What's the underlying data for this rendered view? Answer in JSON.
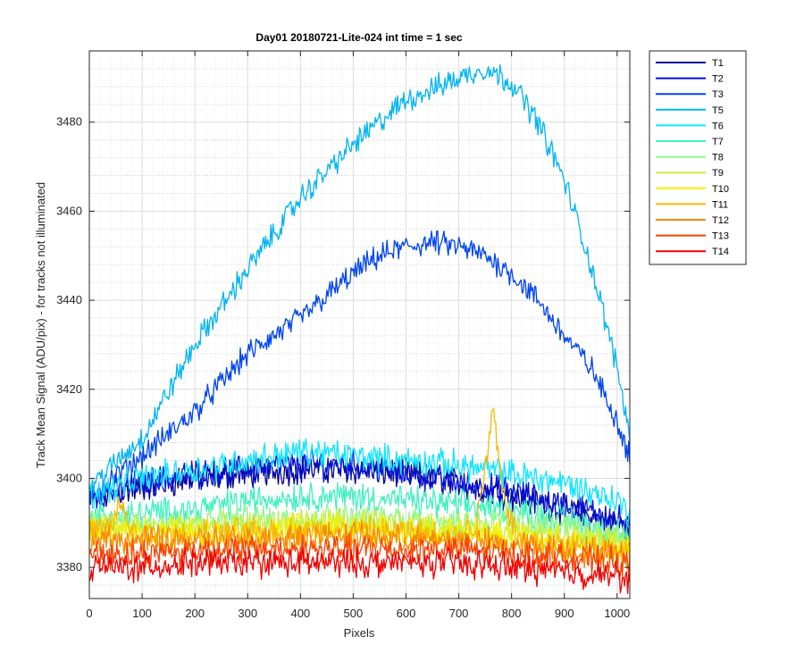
{
  "chart_data": {
    "type": "line",
    "title": "Day01 20180721-Lite-024 int time = 1 sec",
    "xlabel": "Pixels",
    "ylabel": "Track Mean Signal (ADU/pix) - for tracks not illuminated",
    "xlim": [
      0,
      1024
    ],
    "ylim": [
      3373,
      3496
    ],
    "xticks": [
      0,
      100,
      200,
      300,
      400,
      500,
      600,
      700,
      800,
      900,
      1000
    ],
    "xtick_labels": [
      "0",
      "100",
      "200",
      "300",
      "400",
      "500",
      "600",
      "700",
      "800",
      "900",
      "1000"
    ],
    "yticks": [
      3380,
      3400,
      3420,
      3440,
      3460,
      3480
    ],
    "ytick_labels": [
      "3380",
      "3400",
      "3420",
      "3440",
      "3460",
      "3480"
    ],
    "grid": true,
    "minor_grid": true,
    "legend_position": "outside-right",
    "series": [
      {
        "name": "T1",
        "color": "#00009c",
        "x": [
          0,
          100,
          200,
          300,
          400,
          500,
          600,
          700,
          800,
          900,
          1000,
          1024
        ],
        "y": [
          3395,
          3398,
          3400,
          3401,
          3402,
          3402,
          3401,
          3399,
          3396,
          3393,
          3390,
          3388
        ]
      },
      {
        "name": "T2",
        "color": "#0010d8",
        "x": [
          0,
          100,
          200,
          300,
          400,
          500,
          600,
          700,
          800,
          900,
          1000,
          1024
        ],
        "y": [
          3396,
          3399,
          3401,
          3402,
          3403,
          3403,
          3401,
          3399,
          3397,
          3394,
          3391,
          3389
        ]
      },
      {
        "name": "T3",
        "color": "#0044ee",
        "x": [
          0,
          100,
          200,
          300,
          400,
          450,
          500,
          550,
          600,
          650,
          700,
          750,
          800,
          850,
          900,
          950,
          1000,
          1024
        ],
        "y": [
          3396,
          3405,
          3415,
          3428,
          3436,
          3441,
          3446,
          3450,
          3452,
          3453,
          3452,
          3450,
          3446,
          3440,
          3432,
          3425,
          3413,
          3405
        ]
      },
      {
        "name": "T5",
        "color": "#00b4f0",
        "x": [
          0,
          100,
          200,
          300,
          400,
          500,
          600,
          700,
          750,
          800,
          850,
          900,
          950,
          1000,
          1024
        ],
        "y": [
          3398,
          3409,
          3430,
          3447,
          3463,
          3475,
          3485,
          3490,
          3492,
          3489,
          3480,
          3467,
          3448,
          3425,
          3410
        ]
      },
      {
        "name": "T6",
        "color": "#10e4ff",
        "x": [
          0,
          100,
          200,
          300,
          400,
          500,
          600,
          700,
          800,
          900,
          1000,
          1024
        ],
        "y": [
          3396,
          3400,
          3402,
          3404,
          3406,
          3405,
          3404,
          3403,
          3401,
          3399,
          3395,
          3392
        ]
      },
      {
        "name": "T7",
        "color": "#40f0c0",
        "x": [
          0,
          100,
          200,
          300,
          400,
          500,
          600,
          700,
          800,
          900,
          1000,
          1024
        ],
        "y": [
          3391,
          3392,
          3393,
          3395,
          3396,
          3396,
          3395,
          3394,
          3393,
          3391,
          3388,
          3386
        ]
      },
      {
        "name": "T8",
        "color": "#90f890",
        "x": [
          0,
          100,
          200,
          300,
          400,
          500,
          600,
          700,
          800,
          900,
          1000,
          1024
        ],
        "y": [
          3390,
          3390,
          3390,
          3391,
          3391,
          3391,
          3391,
          3390,
          3390,
          3389,
          3387,
          3386
        ]
      },
      {
        "name": "T9",
        "color": "#c8f040",
        "x": [
          0,
          100,
          200,
          300,
          400,
          500,
          600,
          700,
          800,
          900,
          1000,
          1024
        ],
        "y": [
          3389,
          3389,
          3389,
          3389,
          3390,
          3390,
          3389,
          3389,
          3388,
          3387,
          3386,
          3385
        ]
      },
      {
        "name": "T10",
        "color": "#f8f000",
        "x": [
          0,
          100,
          200,
          300,
          400,
          500,
          600,
          700,
          800,
          900,
          1000,
          1024
        ],
        "y": [
          3388,
          3388,
          3388,
          3388,
          3389,
          3389,
          3388,
          3388,
          3387,
          3386,
          3385,
          3384
        ]
      },
      {
        "name": "T11",
        "color": "#f8b800",
        "x": [
          0,
          45,
          60,
          80,
          100,
          200,
          300,
          400,
          500,
          600,
          700,
          735,
          750,
          765,
          780,
          800,
          820,
          900,
          1000,
          1024
        ],
        "y": [
          3388,
          3389,
          3395,
          3388,
          3387,
          3387,
          3388,
          3388,
          3388,
          3388,
          3387,
          3390,
          3403,
          3417,
          3400,
          3390,
          3386,
          3385,
          3384,
          3383
        ]
      },
      {
        "name": "T12",
        "color": "#f88800",
        "x": [
          0,
          100,
          200,
          300,
          400,
          500,
          600,
          700,
          800,
          900,
          1000,
          1024
        ],
        "y": [
          3386,
          3386,
          3386,
          3386,
          3387,
          3387,
          3386,
          3386,
          3385,
          3384,
          3383,
          3382
        ]
      },
      {
        "name": "T13",
        "color": "#f84000",
        "x": [
          0,
          100,
          200,
          300,
          400,
          500,
          600,
          700,
          800,
          900,
          1000,
          1024
        ],
        "y": [
          3383,
          3383,
          3384,
          3384,
          3384,
          3384,
          3384,
          3384,
          3383,
          3382,
          3381,
          3380
        ]
      },
      {
        "name": "T14",
        "color": "#f00000",
        "x": [
          0,
          100,
          200,
          300,
          400,
          500,
          600,
          700,
          800,
          900,
          1000,
          1024
        ],
        "y": [
          3380,
          3380,
          3381,
          3381,
          3381,
          3381,
          3381,
          3381,
          3380,
          3379,
          3378,
          3377
        ]
      }
    ]
  }
}
